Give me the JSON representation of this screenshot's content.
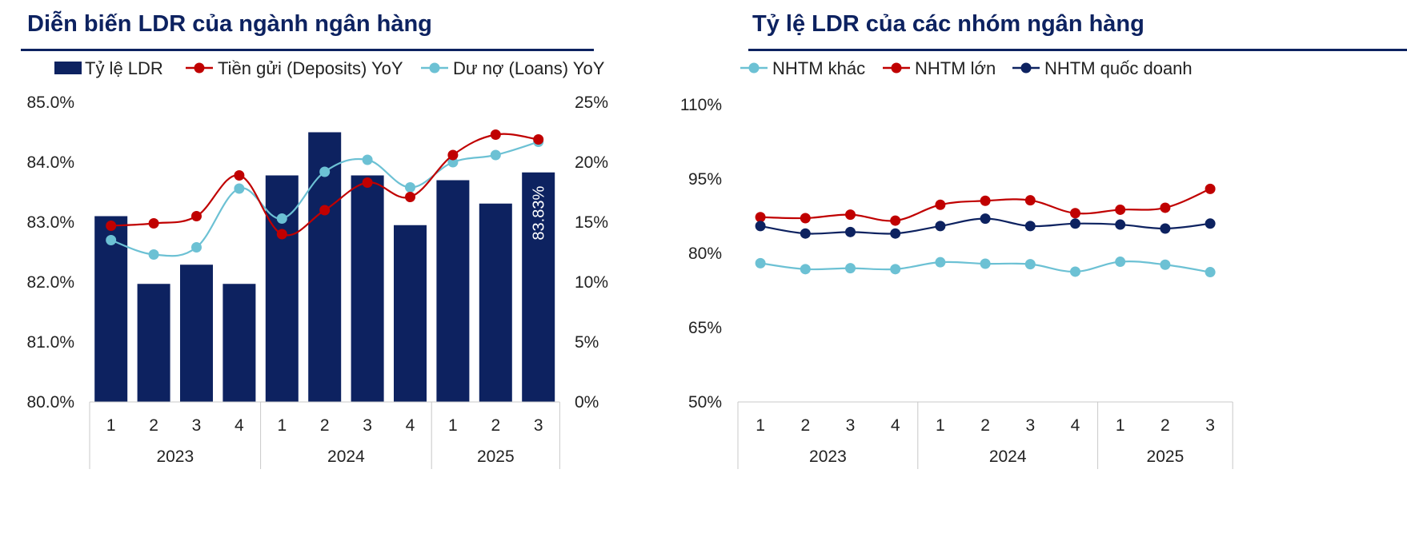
{
  "chart_data": [
    {
      "type": "bar+line",
      "title": "Diễn biến LDR của ngành ngân hàng",
      "categories": [
        "1",
        "2",
        "3",
        "4",
        "1",
        "2",
        "3",
        "4",
        "1",
        "2",
        "3"
      ],
      "groups": [
        {
          "label": "2023",
          "count": 4
        },
        {
          "label": "2024",
          "count": 4
        },
        {
          "label": "2025",
          "count": 3
        }
      ],
      "left_axis": {
        "ylim": [
          80.0,
          85.0
        ],
        "ticks": [
          "80.0%",
          "81.0%",
          "82.0%",
          "83.0%",
          "84.0%",
          "85.0%"
        ]
      },
      "right_axis": {
        "ylim": [
          0,
          25
        ],
        "ticks": [
          "0%",
          "5%",
          "10%",
          "15%",
          "20%",
          "25%"
        ]
      },
      "series": [
        {
          "name": "Tỷ lệ LDR",
          "kind": "bar",
          "axis": "left",
          "color": "#0d2260",
          "values": [
            83.1,
            81.97,
            82.29,
            81.97,
            83.78,
            84.5,
            83.78,
            82.95,
            83.7,
            83.31,
            83.83
          ]
        },
        {
          "name": "Tiền gửi (Deposits) YoY",
          "kind": "line",
          "axis": "right",
          "color": "#c00000",
          "values": [
            14.7,
            14.9,
            15.5,
            18.9,
            14.0,
            16.0,
            18.3,
            17.1,
            20.6,
            22.3,
            21.9
          ]
        },
        {
          "name": "Dư nợ (Loans) YoY",
          "kind": "line",
          "axis": "right",
          "color": "#6cc1d4",
          "values": [
            13.5,
            12.3,
            12.9,
            17.8,
            15.3,
            19.2,
            20.2,
            17.9,
            20.0,
            20.6,
            21.7
          ]
        }
      ],
      "data_labels": [
        {
          "series": "Tỷ lệ LDR",
          "index": 10,
          "text": "83.83%"
        }
      ],
      "legend": "top"
    },
    {
      "type": "line",
      "title": "Tỷ lệ LDR của các nhóm ngân hàng",
      "categories": [
        "1",
        "2",
        "3",
        "4",
        "1",
        "2",
        "3",
        "4",
        "1",
        "2",
        "3"
      ],
      "groups": [
        {
          "label": "2023",
          "count": 4
        },
        {
          "label": "2024",
          "count": 4
        },
        {
          "label": "2025",
          "count": 3
        }
      ],
      "y_axis": {
        "ylim": [
          50,
          110
        ],
        "ticks": [
          "50%",
          "65%",
          "80%",
          "95%",
          "110%"
        ]
      },
      "series": [
        {
          "name": "NHTM khác",
          "color": "#6cc1d4",
          "values": [
            78.0,
            76.8,
            77.0,
            76.8,
            78.2,
            77.9,
            77.8,
            76.3,
            78.3,
            77.7,
            76.2
          ]
        },
        {
          "name": "NHTM lớn",
          "color": "#c00000",
          "values": [
            87.3,
            87.1,
            87.8,
            86.6,
            89.8,
            90.6,
            90.7,
            88.1,
            88.8,
            89.2,
            93.0
          ]
        },
        {
          "name": "NHTM quốc doanh",
          "color": "#0d2260",
          "values": [
            85.5,
            84.0,
            84.3,
            84.0,
            85.5,
            87.0,
            85.5,
            86.0,
            85.8,
            85.0,
            86.0
          ]
        }
      ],
      "legend": "top"
    }
  ]
}
